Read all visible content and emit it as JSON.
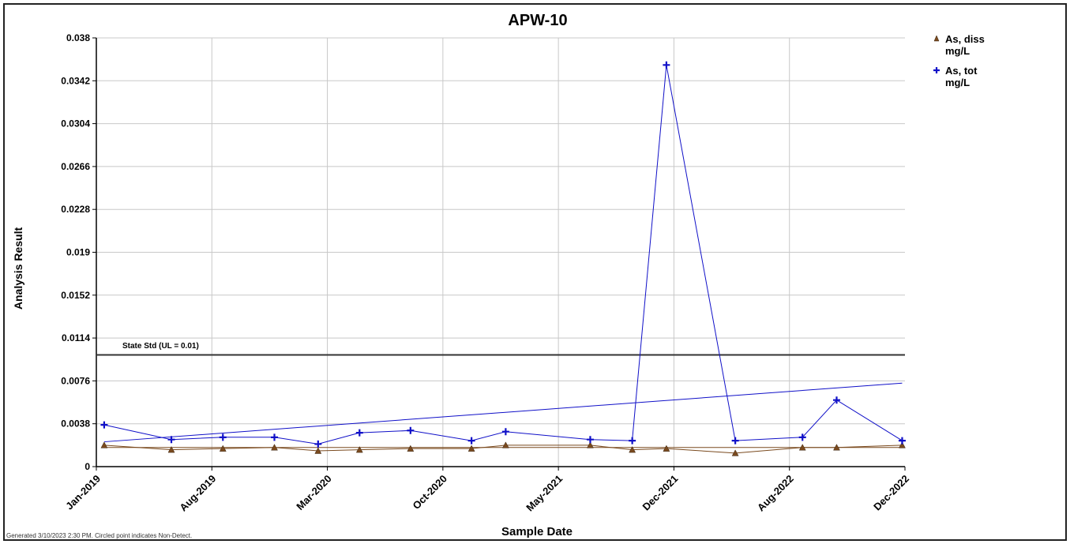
{
  "chart_data": {
    "type": "line",
    "title": "APW-10",
    "xlabel": "Sample Date",
    "ylabel": "Analysis Result",
    "x_ticks": [
      "Jan-2019",
      "Aug-2019",
      "Mar-2020",
      "Oct-2020",
      "May-2021",
      "Dec-2021",
      "Aug-2022",
      "Dec-2022"
    ],
    "y_ticks": [
      "0",
      "0.0038",
      "0.0076",
      "0.0114",
      "0.0152",
      "0.019",
      "0.0228",
      "0.0266",
      "0.0304",
      "0.0342",
      "0.038"
    ],
    "ylim": [
      0,
      0.038
    ],
    "grid": true,
    "legend_position": "top-right",
    "series": [
      {
        "name": "As, diss mg/L",
        "marker": "triangle",
        "color": "#7a4a1e",
        "points": [
          {
            "x": "2019-01-15",
            "y": 0.0019
          },
          {
            "x": "2019-05-15",
            "y": 0.0015
          },
          {
            "x": "2019-08-15",
            "y": 0.0016
          },
          {
            "x": "2019-11-15",
            "y": 0.0017
          },
          {
            "x": "2020-02-01",
            "y": 0.0014
          },
          {
            "x": "2020-04-15",
            "y": 0.0015
          },
          {
            "x": "2020-07-15",
            "y": 0.0016
          },
          {
            "x": "2020-11-01",
            "y": 0.0016
          },
          {
            "x": "2021-01-01",
            "y": 0.0019
          },
          {
            "x": "2021-06-01",
            "y": 0.0019
          },
          {
            "x": "2021-08-15",
            "y": 0.0015
          },
          {
            "x": "2021-10-15",
            "y": 0.0016
          },
          {
            "x": "2022-02-15",
            "y": 0.0012
          },
          {
            "x": "2022-06-15",
            "y": 0.0017
          },
          {
            "x": "2022-08-15",
            "y": 0.0017
          },
          {
            "x": "2022-12-10",
            "y": 0.0019
          }
        ],
        "trend": [
          {
            "x": "2019-01-15",
            "y": 0.0017
          },
          {
            "x": "2022-12-10",
            "y": 0.0017
          }
        ]
      },
      {
        "name": "As, tot mg/L",
        "marker": "plus",
        "color": "#1010c8",
        "points": [
          {
            "x": "2019-01-15",
            "y": 0.0037
          },
          {
            "x": "2019-05-15",
            "y": 0.0024
          },
          {
            "x": "2019-08-15",
            "y": 0.0026
          },
          {
            "x": "2019-11-15",
            "y": 0.0026
          },
          {
            "x": "2020-02-01",
            "y": 0.002
          },
          {
            "x": "2020-04-15",
            "y": 0.003
          },
          {
            "x": "2020-07-15",
            "y": 0.0032
          },
          {
            "x": "2020-11-01",
            "y": 0.0023
          },
          {
            "x": "2021-01-01",
            "y": 0.0031
          },
          {
            "x": "2021-06-01",
            "y": 0.0024
          },
          {
            "x": "2021-08-15",
            "y": 0.0023
          },
          {
            "x": "2021-10-15",
            "y": 0.0356
          },
          {
            "x": "2022-02-15",
            "y": 0.0023
          },
          {
            "x": "2022-06-15",
            "y": 0.0026
          },
          {
            "x": "2022-08-15",
            "y": 0.0059
          },
          {
            "x": "2022-12-10",
            "y": 0.0023
          }
        ],
        "trend": [
          {
            "x": "2019-01-15",
            "y": 0.0022
          },
          {
            "x": "2022-12-10",
            "y": 0.0074
          }
        ]
      }
    ],
    "reference_line": {
      "label": "State Std (UL = 0.01)",
      "y": 0.0099
    }
  },
  "footer_text": "Generated 3/10/2023 2:30 PM. Circled point indicates Non-Detect."
}
